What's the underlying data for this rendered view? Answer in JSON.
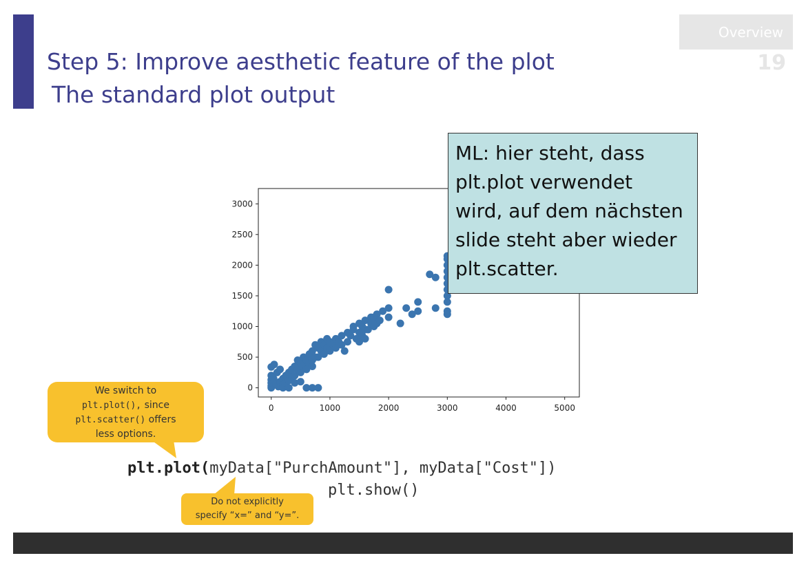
{
  "slide": {
    "title_line1": "Step 5: Improve aesthetic feature of the plot",
    "title_line2": "The standard plot output",
    "overview_label": "Overview",
    "page_number": "19",
    "accent_color": "#3d3e8c",
    "footer_color": "#2f2f2f"
  },
  "note": {
    "text_lines": [
      "ML: hier steht, dass",
      "plt.plot verwendet",
      "wird, auf dem nächsten",
      "slide steht aber wieder",
      "plt.scatter."
    ],
    "background": "#bfe1e3"
  },
  "callouts": {
    "switch": {
      "line1": "We switch to",
      "code1": "plt.plot(),",
      "text1": " since",
      "code2": "plt.scatter()",
      "text2": " offers",
      "line4": "less options."
    },
    "no_xy": {
      "line1": "Do not explicitly",
      "line2": "specify “x=” and “y=”."
    },
    "color": "#f8c12d"
  },
  "code": {
    "line1_bold": "plt.plot(",
    "line1_rest": "myData[\"PurchAmount\"], myData[\"Cost\"])",
    "line2": "plt.show()"
  },
  "chart_data": {
    "type": "scatter",
    "marker_color": "#3b75af",
    "xlim": [
      -220,
      5250
    ],
    "ylim": [
      -150,
      3250
    ],
    "xticks": [
      0,
      1000,
      2000,
      3000,
      4000,
      5000
    ],
    "yticks": [
      0,
      500,
      1000,
      1500,
      2000,
      2500,
      3000
    ],
    "xtick_labels": [
      "0",
      "1000",
      "2000",
      "3000",
      "4000",
      "5000"
    ],
    "ytick_labels": [
      "0",
      "500",
      "1000",
      "1500",
      "2000",
      "2500",
      "3000"
    ],
    "points": [
      [
        0,
        0
      ],
      [
        0,
        30
      ],
      [
        0,
        80
      ],
      [
        0,
        130
      ],
      [
        0,
        200
      ],
      [
        0,
        340
      ],
      [
        50,
        380
      ],
      [
        40,
        150
      ],
      [
        80,
        60
      ],
      [
        100,
        250
      ],
      [
        120,
        20
      ],
      [
        150,
        100
      ],
      [
        150,
        300
      ],
      [
        200,
        150
      ],
      [
        200,
        50
      ],
      [
        200,
        0
      ],
      [
        250,
        200
      ],
      [
        250,
        80
      ],
      [
        300,
        250
      ],
      [
        300,
        120
      ],
      [
        300,
        0
      ],
      [
        350,
        300
      ],
      [
        350,
        180
      ],
      [
        400,
        350
      ],
      [
        400,
        200
      ],
      [
        400,
        80
      ],
      [
        450,
        300
      ],
      [
        450,
        450
      ],
      [
        500,
        400
      ],
      [
        500,
        250
      ],
      [
        500,
        100
      ],
      [
        550,
        500
      ],
      [
        550,
        350
      ],
      [
        600,
        450
      ],
      [
        600,
        300
      ],
      [
        600,
        0
      ],
      [
        650,
        550
      ],
      [
        650,
        400
      ],
      [
        700,
        600
      ],
      [
        700,
        450
      ],
      [
        700,
        350
      ],
      [
        700,
        0
      ],
      [
        750,
        500
      ],
      [
        750,
        700
      ],
      [
        800,
        650
      ],
      [
        800,
        500
      ],
      [
        800,
        0
      ],
      [
        850,
        600
      ],
      [
        850,
        750
      ],
      [
        900,
        700
      ],
      [
        900,
        550
      ],
      [
        950,
        650
      ],
      [
        950,
        800
      ],
      [
        1000,
        750
      ],
      [
        1000,
        600
      ],
      [
        1050,
        700
      ],
      [
        1100,
        800
      ],
      [
        1100,
        650
      ],
      [
        1150,
        750
      ],
      [
        1200,
        850
      ],
      [
        1200,
        700
      ],
      [
        1250,
        600
      ],
      [
        1300,
        900
      ],
      [
        1300,
        750
      ],
      [
        1350,
        850
      ],
      [
        1400,
        1000
      ],
      [
        1400,
        950
      ],
      [
        1450,
        800
      ],
      [
        1500,
        900
      ],
      [
        1500,
        750
      ],
      [
        1500,
        1050
      ],
      [
        1550,
        1000
      ],
      [
        1550,
        850
      ],
      [
        1600,
        1100
      ],
      [
        1600,
        950
      ],
      [
        1600,
        800
      ],
      [
        1650,
        950
      ],
      [
        1700,
        1150
      ],
      [
        1700,
        1050
      ],
      [
        1750,
        1000
      ],
      [
        1750,
        1150
      ],
      [
        1800,
        1200
      ],
      [
        1800,
        1050
      ],
      [
        1850,
        1100
      ],
      [
        1900,
        1250
      ],
      [
        2000,
        1150
      ],
      [
        2000,
        1600
      ],
      [
        2000,
        1300
      ],
      [
        2200,
        1050
      ],
      [
        2300,
        1300
      ],
      [
        2400,
        1200
      ],
      [
        2500,
        1400
      ],
      [
        2500,
        1250
      ],
      [
        2700,
        1850
      ],
      [
        2800,
        1800
      ],
      [
        2800,
        1300
      ],
      [
        3000,
        1250
      ],
      [
        3000,
        1200
      ],
      [
        3000,
        1500
      ],
      [
        3000,
        1600
      ],
      [
        3000,
        1700
      ],
      [
        3000,
        1900
      ],
      [
        3000,
        2000
      ],
      [
        3000,
        2100
      ],
      [
        3000,
        2150
      ],
      [
        3000,
        1400
      ],
      [
        3000,
        1800
      ]
    ]
  }
}
